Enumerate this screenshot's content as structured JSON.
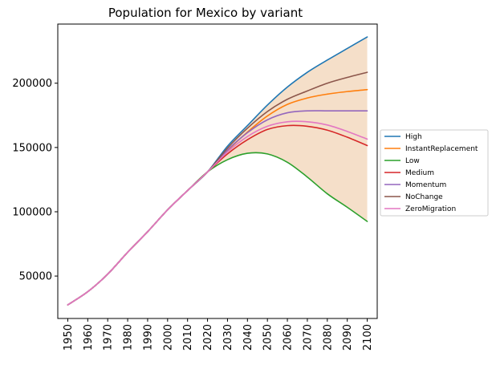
{
  "chart_data": {
    "type": "line",
    "title": "Population for Mexico by variant",
    "xlabel": "",
    "ylabel": "",
    "xlim": [
      1945,
      2105
    ],
    "ylim": [
      17000,
      246000
    ],
    "x_ticks": [
      1950,
      1960,
      1970,
      1980,
      1990,
      2000,
      2010,
      2020,
      2030,
      2040,
      2050,
      2060,
      2070,
      2080,
      2090,
      2100
    ],
    "x_tick_labels": [
      "1950",
      "1960",
      "1970",
      "1980",
      "1990",
      "2000",
      "2010",
      "2020",
      "2030",
      "2040",
      "2050",
      "2060",
      "2070",
      "2080",
      "2090",
      "2100"
    ],
    "y_ticks": [
      50000,
      100000,
      150000,
      200000
    ],
    "y_tick_labels": [
      "50000",
      "100000",
      "150000",
      "200000"
    ],
    "grid": false,
    "legend_position": "right-outside",
    "fill_between": {
      "lower": "Low",
      "upper": "High",
      "color": "#f5dfc9"
    },
    "x": [
      1950,
      1960,
      1970,
      1980,
      1990,
      2000,
      2010,
      2020,
      2030,
      2040,
      2050,
      2060,
      2070,
      2080,
      2090,
      2100
    ],
    "series": [
      {
        "name": "High",
        "color": "#1f77b4",
        "values": [
          27600,
          37800,
          51500,
          68500,
          84500,
          101500,
          116500,
          131000,
          151000,
          167000,
          183000,
          197000,
          208500,
          218000,
          227000,
          236000
        ]
      },
      {
        "name": "InstantReplacement",
        "color": "#ff7f0e",
        "values": [
          27600,
          37800,
          51500,
          68500,
          84500,
          101500,
          116500,
          131000,
          147500,
          162000,
          174500,
          183500,
          188500,
          191500,
          193500,
          195000
        ]
      },
      {
        "name": "Low",
        "color": "#2ca02c",
        "values": [
          27600,
          37800,
          51500,
          68500,
          84500,
          101500,
          116500,
          131000,
          140500,
          145500,
          145000,
          138500,
          127000,
          114000,
          103500,
          92500
        ]
      },
      {
        "name": "Medium",
        "color": "#d62728",
        "values": [
          27600,
          37800,
          51500,
          68500,
          84500,
          101500,
          116500,
          131000,
          145000,
          156000,
          164000,
          167000,
          166500,
          163500,
          158000,
          151500
        ]
      },
      {
        "name": "Momentum",
        "color": "#9467bd",
        "values": [
          27600,
          37800,
          51500,
          68500,
          84500,
          101500,
          116500,
          131000,
          148000,
          161500,
          171500,
          177000,
          178500,
          178500,
          178500,
          178500
        ]
      },
      {
        "name": "NoChange",
        "color": "#8c564b",
        "values": [
          27600,
          37800,
          51500,
          68500,
          84500,
          101500,
          116500,
          131000,
          149500,
          165000,
          178000,
          187500,
          194000,
          200000,
          204500,
          208500
        ]
      },
      {
        "name": "ZeroMigration",
        "color": "#e377c2",
        "values": [
          27600,
          37800,
          51500,
          68500,
          84500,
          101500,
          116500,
          131000,
          146500,
          158500,
          166500,
          170000,
          170000,
          167500,
          162500,
          156500
        ]
      }
    ]
  }
}
